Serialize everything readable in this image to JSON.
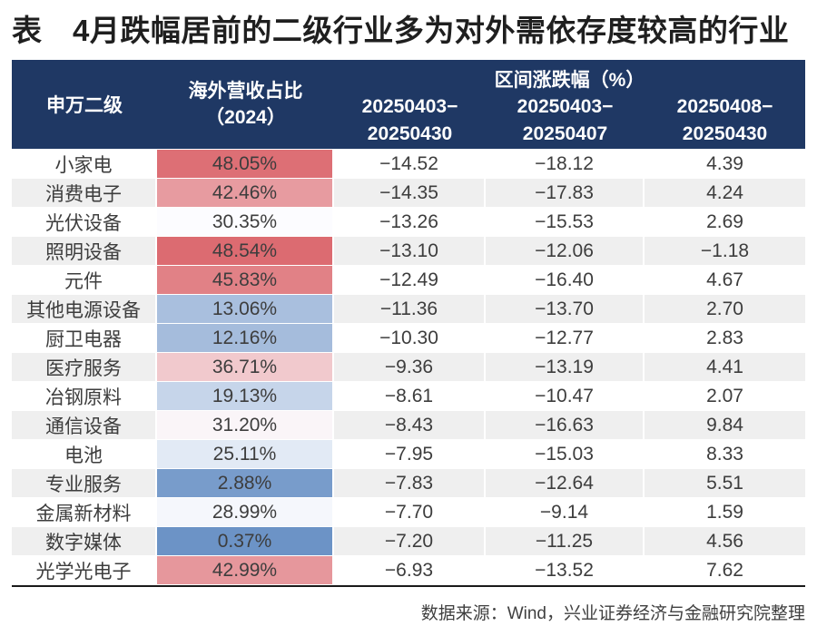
{
  "title": "表　4月跌幅居前的二级行业多为对外需依存度较高的行业",
  "source_note": "数据来源：Wind，兴业证券经济与金融研究院整理",
  "colors": {
    "header_bg": "#1f3864",
    "header_text": "#ffffff",
    "stripe_even": "#ffffff",
    "stripe_odd": "#efefef",
    "bottom_rule": "#1a1a1a",
    "body_text": "#3d3d3d"
  },
  "chart_data": {
    "type": "table",
    "header": {
      "col1": "申万二级",
      "col2_line1": "海外营收占比",
      "col2_line2": "（2024）",
      "group": "区间涨跌幅（%）",
      "sub1_line1": "20250403−",
      "sub1_line2": "20250430",
      "sub2_line1": "20250403−",
      "sub2_line2": "20250407",
      "sub3_line1": "20250408−",
      "sub3_line2": "20250430"
    },
    "columns": [
      "申万二级",
      "海外营收占比（2024）",
      "区间涨跌幅（%）20250403−20250430",
      "区间涨跌幅（%）20250403−20250407",
      "区间涨跌幅（%）20250408−20250430"
    ],
    "rows": [
      {
        "name": "小家电",
        "overseas_pct": "48.05%",
        "heat": "#DD6F75",
        "chg_0403_0430": "−14.52",
        "chg_0403_0407": "−18.12",
        "chg_0408_0430": "4.39"
      },
      {
        "name": "消费电子",
        "overseas_pct": "42.46%",
        "heat": "#E79BA0",
        "chg_0403_0430": "−14.35",
        "chg_0403_0407": "−17.83",
        "chg_0408_0430": "4.24"
      },
      {
        "name": "光伏设备",
        "overseas_pct": "30.35%",
        "heat": "#FCFCFF",
        "chg_0403_0430": "−13.26",
        "chg_0403_0407": "−15.53",
        "chg_0408_0430": "2.69"
      },
      {
        "name": "照明设备",
        "overseas_pct": "48.54%",
        "heat": "#DC6B71",
        "chg_0403_0430": "−13.10",
        "chg_0403_0407": "−12.06",
        "chg_0408_0430": "−1.18"
      },
      {
        "name": "元件",
        "overseas_pct": "45.83%",
        "heat": "#E18186",
        "chg_0403_0430": "−12.49",
        "chg_0403_0407": "−16.40",
        "chg_0408_0430": "4.67"
      },
      {
        "name": "其他电源设备",
        "overseas_pct": "13.06%",
        "heat": "#A9BFDE",
        "chg_0403_0430": "−11.36",
        "chg_0403_0407": "−13.70",
        "chg_0408_0430": "2.70"
      },
      {
        "name": "厨卫电器",
        "overseas_pct": "12.16%",
        "heat": "#A5BCDC",
        "chg_0403_0430": "−10.30",
        "chg_0403_0407": "−12.77",
        "chg_0408_0430": "2.83"
      },
      {
        "name": "医疗服务",
        "overseas_pct": "36.71%",
        "heat": "#F1C9CD",
        "chg_0403_0430": "−9.36",
        "chg_0403_0407": "−13.19",
        "chg_0408_0430": "4.41"
      },
      {
        "name": "冶钢原料",
        "overseas_pct": "19.13%",
        "heat": "#C6D5EA",
        "chg_0403_0430": "−8.61",
        "chg_0403_0407": "−10.47",
        "chg_0408_0430": "2.07"
      },
      {
        "name": "通信设备",
        "overseas_pct": "31.20%",
        "heat": "#FAF5F8",
        "chg_0403_0430": "−8.43",
        "chg_0403_0407": "−16.63",
        "chg_0408_0430": "9.84"
      },
      {
        "name": "电池",
        "overseas_pct": "25.11%",
        "heat": "#E2EAF5",
        "chg_0403_0430": "−7.95",
        "chg_0403_0407": "−15.03",
        "chg_0408_0430": "8.33"
      },
      {
        "name": "专业服务",
        "overseas_pct": "2.88%",
        "heat": "#789CCB",
        "chg_0403_0430": "−7.83",
        "chg_0403_0407": "−12.64",
        "chg_0408_0430": "5.51"
      },
      {
        "name": "金属新材料",
        "overseas_pct": "28.99%",
        "heat": "#F5F7FC",
        "chg_0403_0430": "−7.70",
        "chg_0403_0407": "−9.14",
        "chg_0408_0430": "1.59"
      },
      {
        "name": "数字媒体",
        "overseas_pct": "0.37%",
        "heat": "#6C93C6",
        "chg_0403_0430": "−7.20",
        "chg_0403_0407": "−11.25",
        "chg_0408_0430": "4.56"
      },
      {
        "name": "光学光电子",
        "overseas_pct": "42.99%",
        "heat": "#E6979C",
        "chg_0403_0430": "−6.93",
        "chg_0403_0407": "−13.52",
        "chg_0408_0430": "7.62"
      }
    ]
  }
}
